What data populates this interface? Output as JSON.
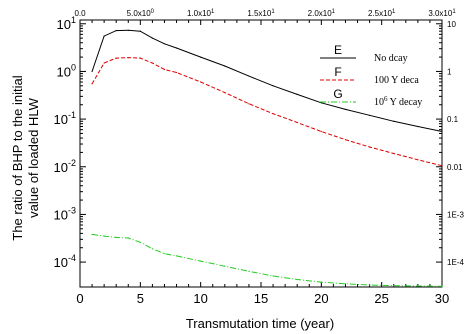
{
  "chart_data": {
    "type": "line",
    "title": "",
    "xlabel": "Transmutation time (year)",
    "ylabel_line1": "The ratio of BHP to the initial",
    "ylabel_line2": "value of loaded HLW",
    "xlim": [
      0,
      30
    ],
    "ylim": [
      3e-05,
      12
    ],
    "yscale": "log",
    "grid": false,
    "legend_position": "top-right",
    "x_ticks": [
      "0",
      "5",
      "10",
      "15",
      "20",
      "25",
      "30"
    ],
    "y_ticks": [
      {
        "value": 10,
        "base": "10",
        "exp": "1"
      },
      {
        "value": 1,
        "base": "10",
        "exp": "0"
      },
      {
        "value": 0.1,
        "base": "10",
        "exp": "-1"
      },
      {
        "value": 0.01,
        "base": "10",
        "exp": "-2"
      },
      {
        "value": 0.001,
        "base": "10",
        "exp": "-3"
      },
      {
        "value": 0.0001,
        "base": "10",
        "exp": "-4"
      }
    ],
    "top_ticks": [
      {
        "label": "0.0",
        "value": 0
      },
      {
        "label": "5.0x10",
        "sub": "0",
        "value": 5
      },
      {
        "label": "1.0x10",
        "sub": "1",
        "value": 10
      },
      {
        "label": "1.5x10",
        "sub": "1",
        "value": 15
      },
      {
        "label": "2.0x10",
        "sub": "1",
        "value": 20
      },
      {
        "label": "2.5x10",
        "sub": "1",
        "value": 25
      },
      {
        "label": "3.0x10",
        "sub": "1",
        "value": 30
      }
    ],
    "right_ticks": [
      {
        "label": "10",
        "value": 10
      },
      {
        "label": "1",
        "value": 1
      },
      {
        "label": "0.1",
        "value": 0.1
      },
      {
        "label": "0.01",
        "value": 0.01
      },
      {
        "label": "1E-3",
        "value": 0.001
      },
      {
        "label": "1E-4",
        "value": 0.0001
      }
    ],
    "series": [
      {
        "name": "E",
        "legend_label": "No dcay",
        "color": "#000000",
        "dash": "solid",
        "x": [
          1,
          2,
          3,
          4,
          5,
          6,
          7,
          8,
          10,
          12,
          14,
          16,
          18,
          20,
          22,
          24,
          26,
          28,
          30
        ],
        "y": [
          1.0,
          5.5,
          7.2,
          7.3,
          7.0,
          5.0,
          3.8,
          3.1,
          2.0,
          1.3,
          0.8,
          0.5,
          0.33,
          0.22,
          0.16,
          0.12,
          0.09,
          0.07,
          0.055
        ]
      },
      {
        "name": "F",
        "legend_label_prefix": "100 Y deca",
        "legend_label_sup": "",
        "legend_label_suffix": "",
        "color": "#dd0000",
        "dash": "4,2",
        "x": [
          1,
          2,
          3,
          4,
          5,
          6,
          7,
          8,
          10,
          12,
          14,
          16,
          18,
          20,
          22,
          24,
          26,
          28,
          30
        ],
        "y": [
          0.55,
          1.5,
          1.9,
          1.95,
          1.9,
          1.5,
          1.1,
          0.95,
          0.6,
          0.36,
          0.21,
          0.13,
          0.085,
          0.055,
          0.037,
          0.026,
          0.019,
          0.014,
          0.0105
        ]
      },
      {
        "name": "G",
        "legend_label_prefix": "10",
        "legend_label_sup": "6",
        "legend_label_suffix": " Y decay",
        "color": "#22cc22",
        "dash": "6,2,1,2",
        "x": [
          1,
          2,
          3,
          4,
          5,
          6,
          7,
          8,
          10,
          12,
          14,
          16,
          18,
          20,
          22,
          24,
          26,
          28,
          30
        ],
        "y": [
          0.00038,
          0.00035,
          0.00033,
          0.00032,
          0.00026,
          0.00019,
          0.00015,
          0.000135,
          0.000105,
          8.2e-05,
          6.4e-05,
          5.1e-05,
          4.3e-05,
          3.8e-05,
          3.5e-05,
          3.3e-05,
          3.2e-05,
          3.15e-05,
          3.1e-05
        ]
      }
    ]
  }
}
